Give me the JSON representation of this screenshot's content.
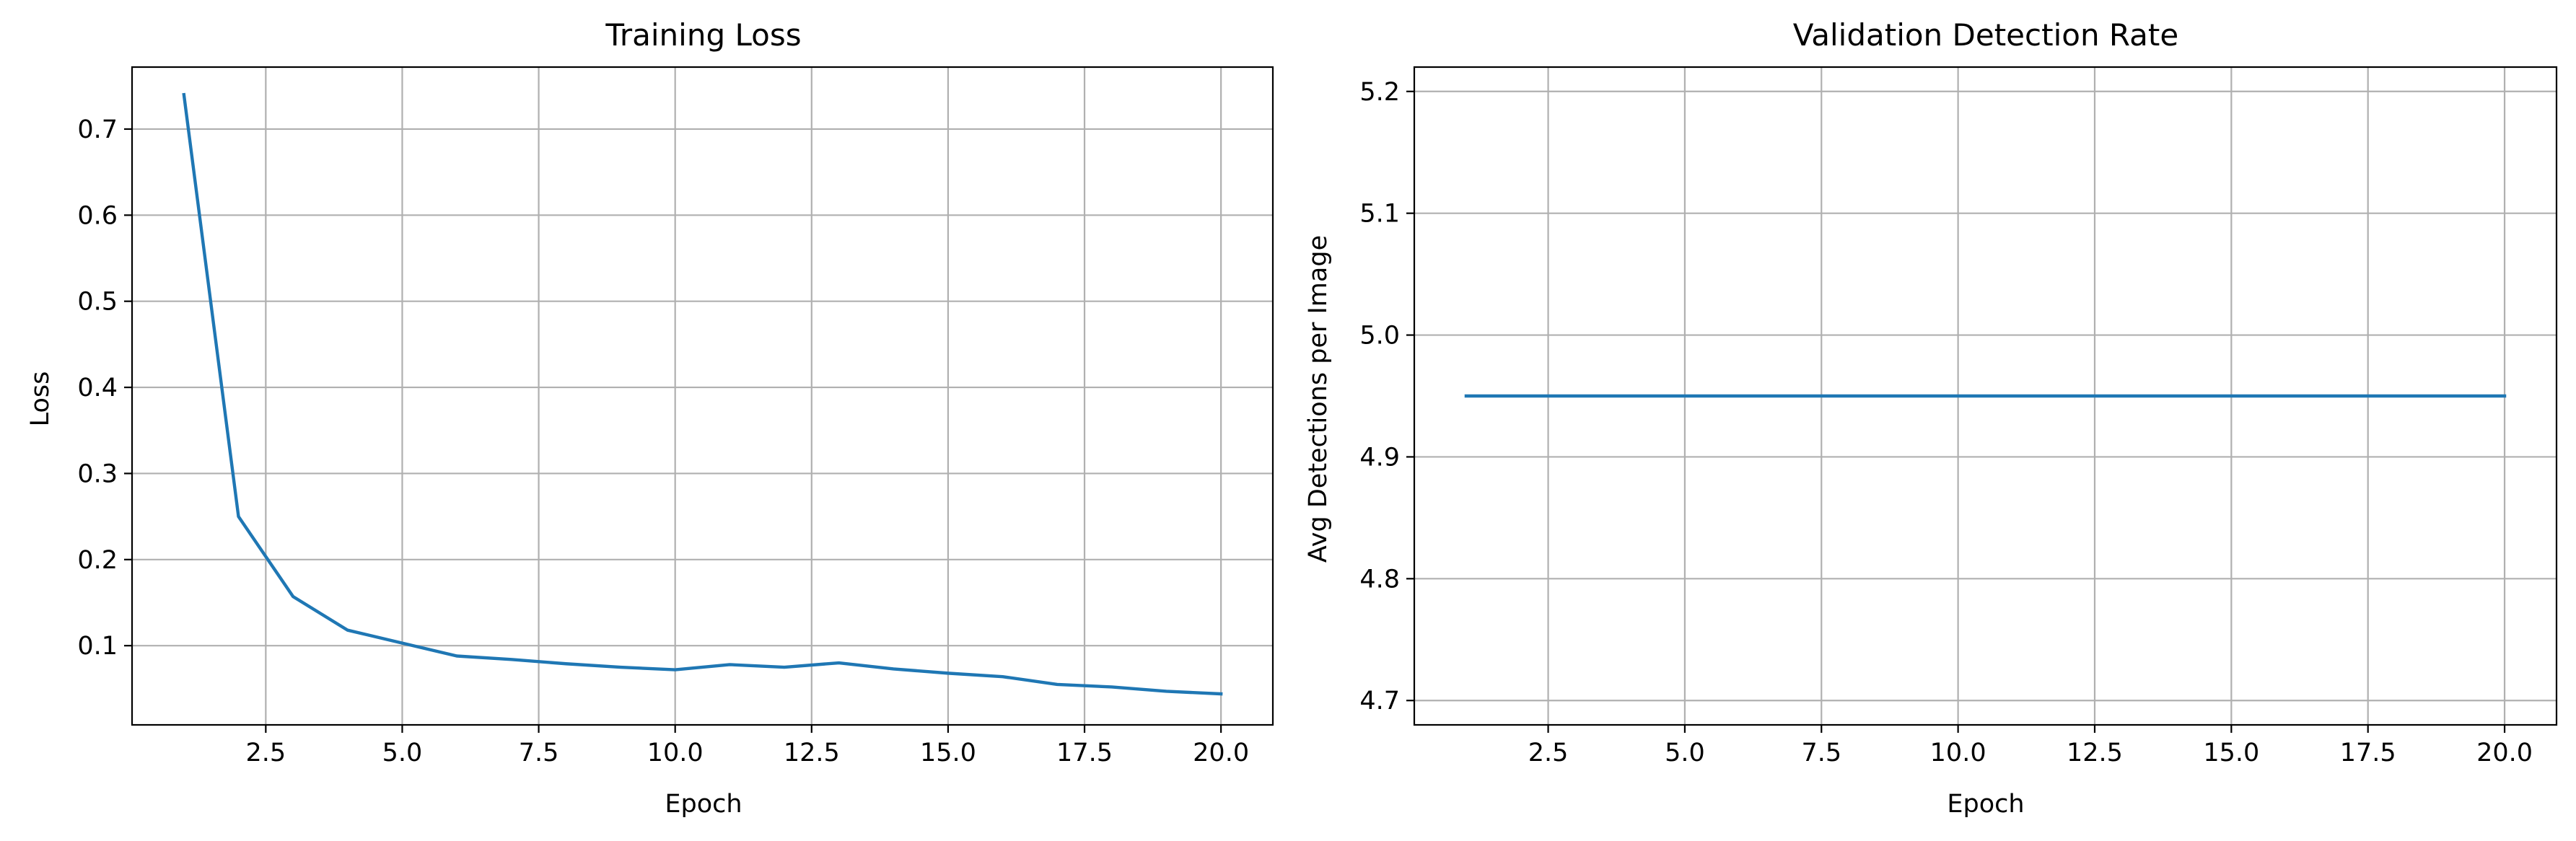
{
  "chart_data": [
    {
      "type": "line",
      "title": "Training Loss",
      "xlabel": "Epoch",
      "ylabel": "Loss",
      "xlim": [
        0.05,
        20.95
      ],
      "ylim": [
        0.008,
        0.772
      ],
      "xticks": [
        2.5,
        5.0,
        7.5,
        10.0,
        12.5,
        15.0,
        17.5,
        20.0
      ],
      "xtick_labels": [
        "2.5",
        "5.0",
        "7.5",
        "10.0",
        "12.5",
        "15.0",
        "17.5",
        "20.0"
      ],
      "yticks": [
        0.1,
        0.2,
        0.3,
        0.4,
        0.5,
        0.6,
        0.7
      ],
      "ytick_labels": [
        "0.1",
        "0.2",
        "0.3",
        "0.4",
        "0.5",
        "0.6",
        "0.7"
      ],
      "grid": true,
      "series": [
        {
          "color": "#1f77b4",
          "x": [
            1,
            2,
            3,
            4,
            5,
            6,
            7,
            8,
            9,
            10,
            11,
            12,
            13,
            14,
            15,
            16,
            17,
            18,
            19,
            20
          ],
          "y": [
            0.74,
            0.25,
            0.157,
            0.118,
            0.103,
            0.088,
            0.084,
            0.079,
            0.075,
            0.072,
            0.078,
            0.075,
            0.08,
            0.073,
            0.068,
            0.064,
            0.055,
            0.052,
            0.047,
            0.044
          ]
        }
      ]
    },
    {
      "type": "line",
      "title": "Validation Detection Rate",
      "xlabel": "Epoch",
      "ylabel": "Avg Detections per Image",
      "xlim": [
        0.05,
        20.95
      ],
      "ylim": [
        4.68,
        5.22
      ],
      "xticks": [
        2.5,
        5.0,
        7.5,
        10.0,
        12.5,
        15.0,
        17.5,
        20.0
      ],
      "xtick_labels": [
        "2.5",
        "5.0",
        "7.5",
        "10.0",
        "12.5",
        "15.0",
        "17.5",
        "20.0"
      ],
      "yticks": [
        4.7,
        4.8,
        4.9,
        5.0,
        5.1,
        5.2
      ],
      "ytick_labels": [
        "4.7",
        "4.8",
        "4.9",
        "5.0",
        "5.1",
        "5.2"
      ],
      "grid": true,
      "series": [
        {
          "color": "#1f77b4",
          "x": [
            1,
            2,
            3,
            4,
            5,
            6,
            7,
            8,
            9,
            10,
            11,
            12,
            13,
            14,
            15,
            16,
            17,
            18,
            19,
            20
          ],
          "y": [
            4.95,
            4.95,
            4.95,
            4.95,
            4.95,
            4.95,
            4.95,
            4.95,
            4.95,
            4.95,
            4.95,
            4.95,
            4.95,
            4.95,
            4.95,
            4.95,
            4.95,
            4.95,
            4.95,
            4.95
          ]
        }
      ]
    }
  ]
}
